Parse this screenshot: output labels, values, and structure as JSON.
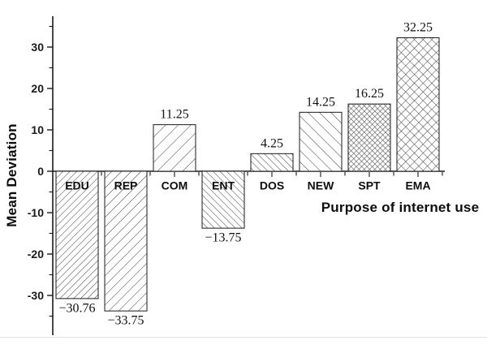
{
  "figure": {
    "background": "#ffffff",
    "ink_color": "#1a1a1a",
    "hatch_color": "#3a3a3a",
    "bar_fill": "#ffffff"
  },
  "chart_data": {
    "type": "bar",
    "title": "",
    "xlabel": "Purpose of internet use",
    "ylabel": "Mean Deviation",
    "categories": [
      "EDU",
      "REP",
      "COM",
      "ENT",
      "DOS",
      "NEW",
      "SPT",
      "EMA"
    ],
    "values": [
      -30.76,
      -33.75,
      11.25,
      -13.75,
      4.25,
      14.25,
      16.25,
      32.25
    ],
    "value_labels": [
      "−30.76",
      "−33.75",
      "11.25",
      "−13.75",
      "4.25",
      "14.25",
      "16.25",
      "32.25"
    ],
    "hatches": [
      "diag-forward-dense",
      "diag-forward-medium",
      "diag-forward-wide",
      "diag-back-dense",
      "diag-back-dense",
      "diag-back-wide",
      "crosshatch-small",
      "crosshatch-large"
    ],
    "yticks": [
      30,
      20,
      10,
      0,
      -10,
      -20,
      -30
    ],
    "ytick_labels": [
      "30",
      "20",
      "10",
      "0",
      "-10",
      "-20",
      "-30"
    ],
    "yminor_ticks": [
      35,
      25,
      15,
      5,
      -5,
      -15,
      -25,
      -35
    ],
    "ylim": [
      -39.5,
      37.5
    ],
    "grid": false,
    "legend": null,
    "baseline_value": 0
  }
}
